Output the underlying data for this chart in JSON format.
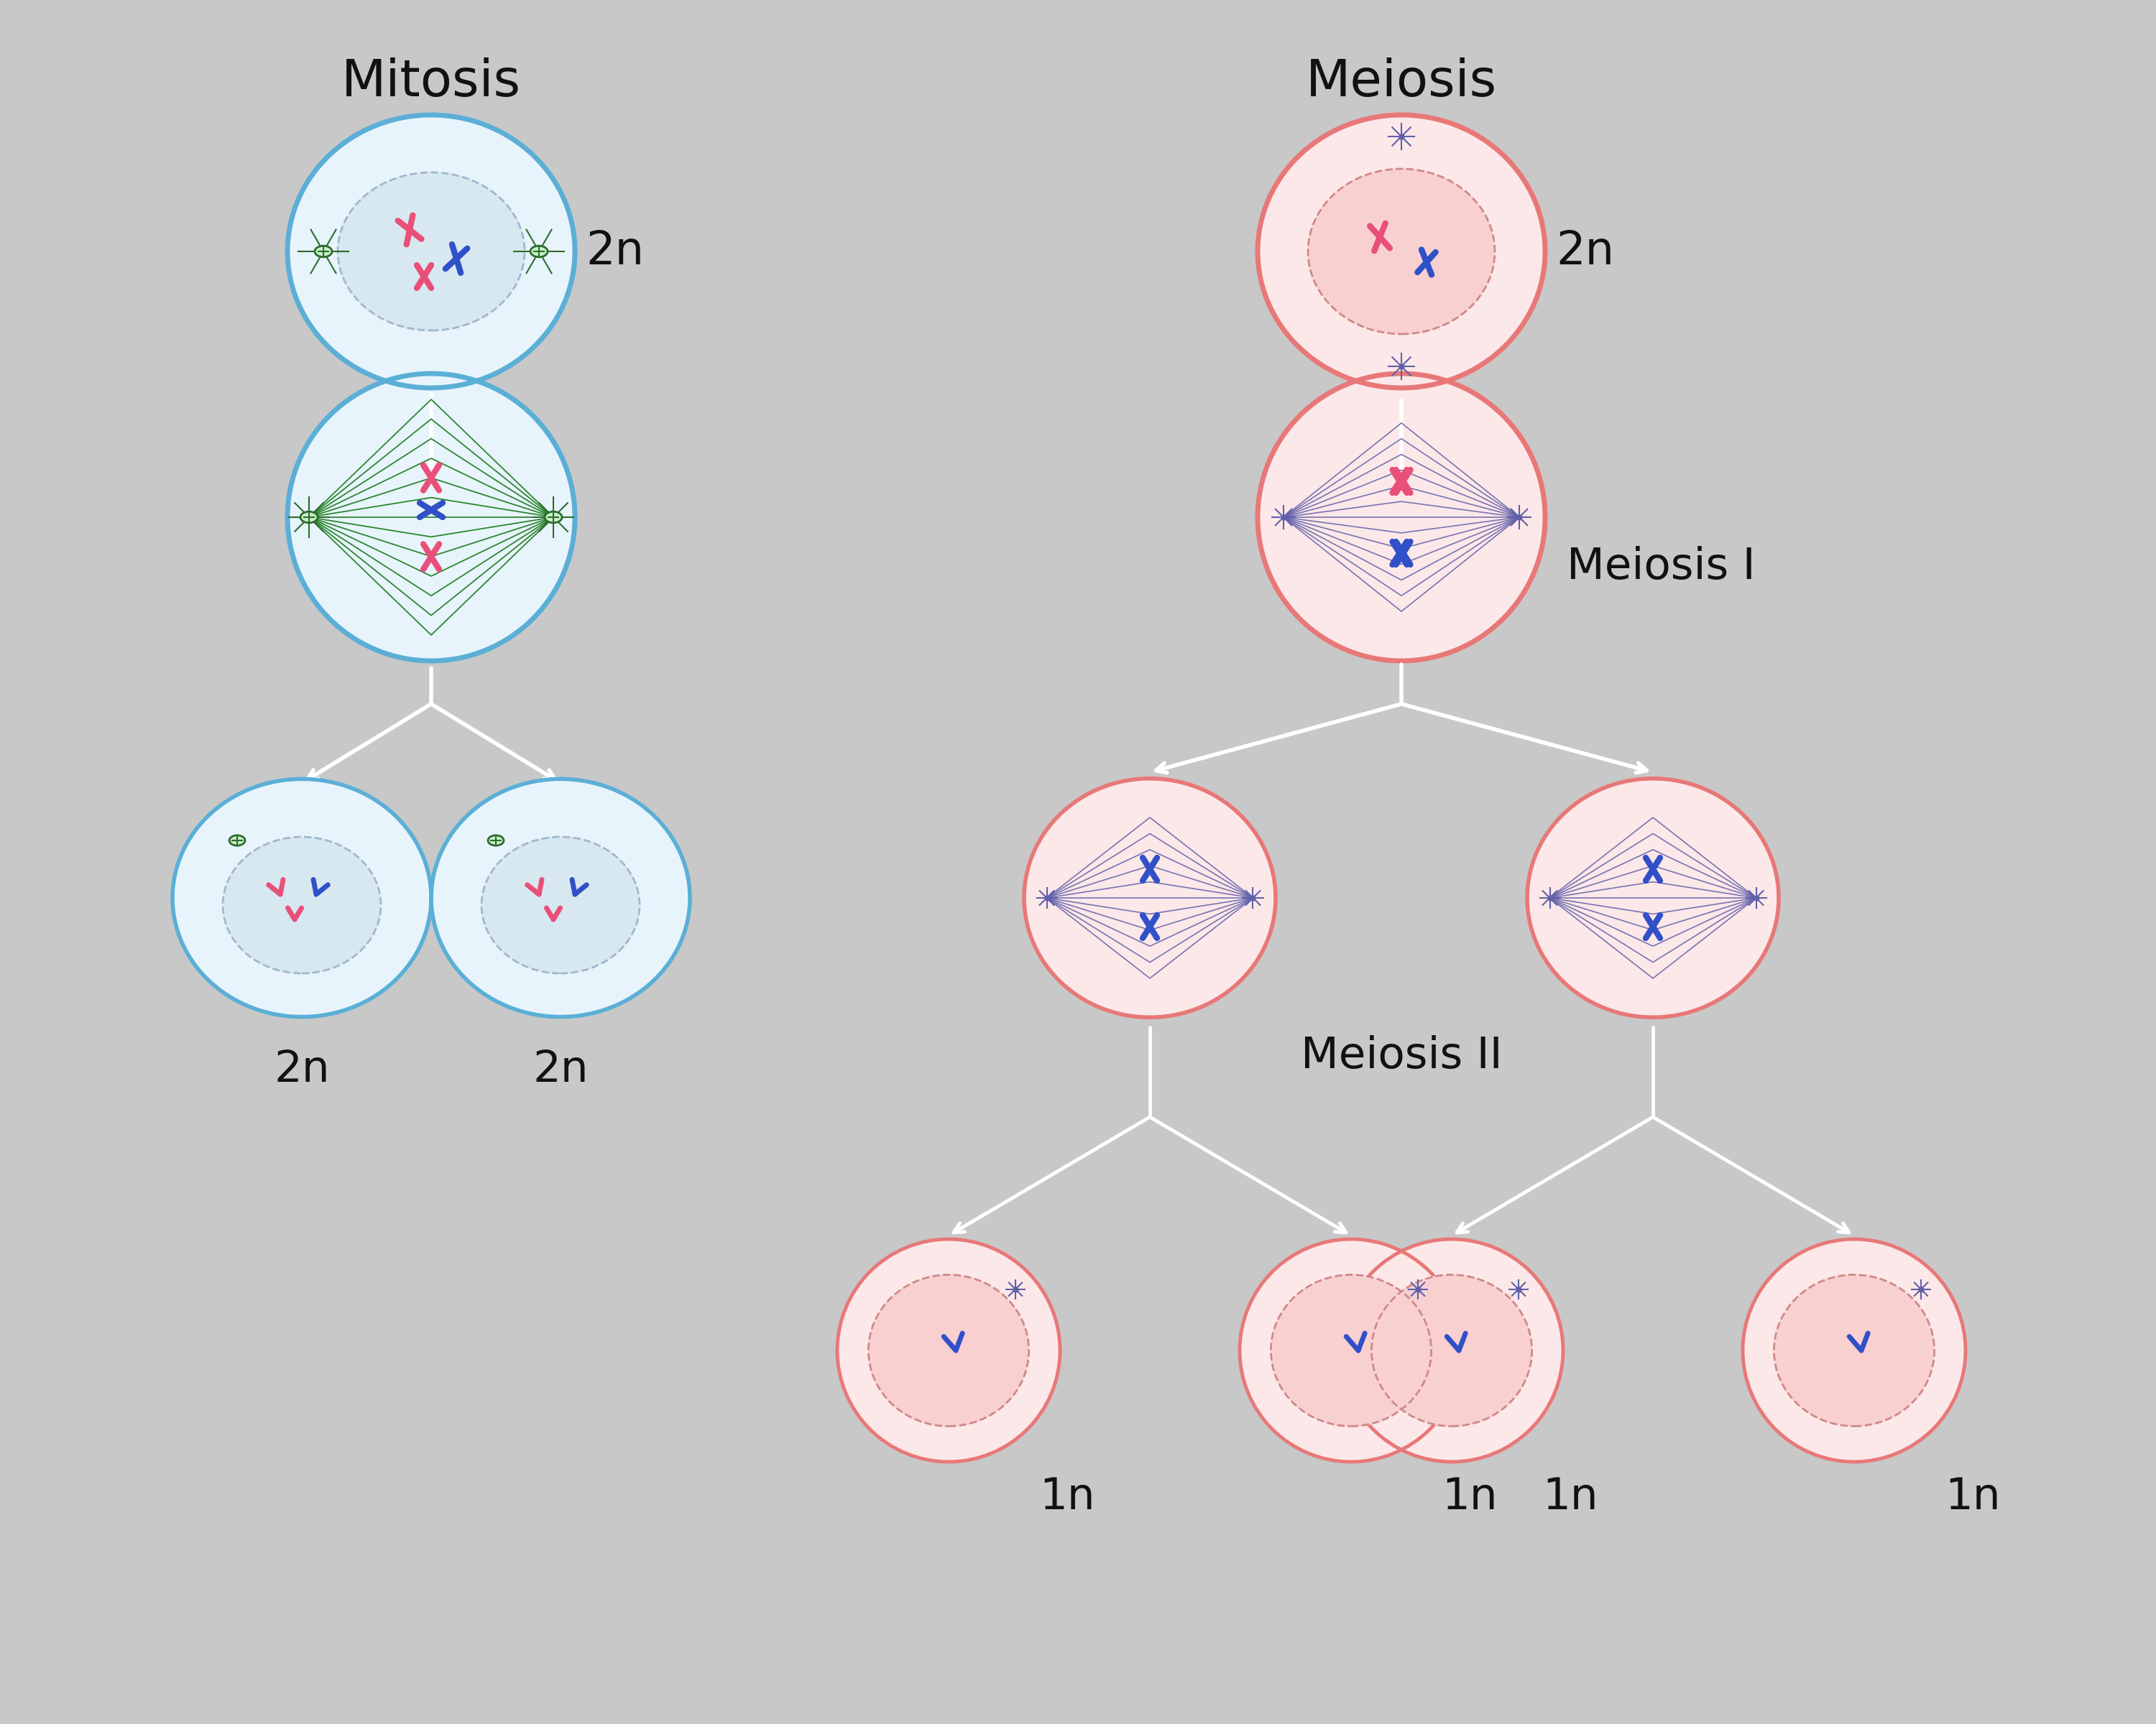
{
  "bg_color": "#c8c8c8",
  "title_mitosis": "Mitosis",
  "title_meiosis": "Meiosis",
  "label_meiosis_i": "Meiosis I",
  "label_meiosis_ii": "Meiosis II",
  "label_2n": "2n",
  "label_1n": "1n",
  "mitosis_cell_color": "#e8f4fc",
  "mitosis_border_color": "#5bafd6",
  "meiosis_cell_color": "#fce8e8",
  "meiosis_border_color": "#e87878",
  "meiosis_inner_color": "#f8d0d0",
  "nucleus_color": "#d8e8f0",
  "nucleus_border": "#a0b8cc",
  "spindle_color_mitosis": "#2d7a2d",
  "spindle_color_meiosis": "#7878c8",
  "chr_pink": "#e8507a",
  "chr_blue": "#3050c8",
  "chr_dark_pink": "#c83060",
  "title_fontsize": 52,
  "label_fontsize": 44,
  "ploidy_fontsize": 46,
  "text_color": "#111111"
}
